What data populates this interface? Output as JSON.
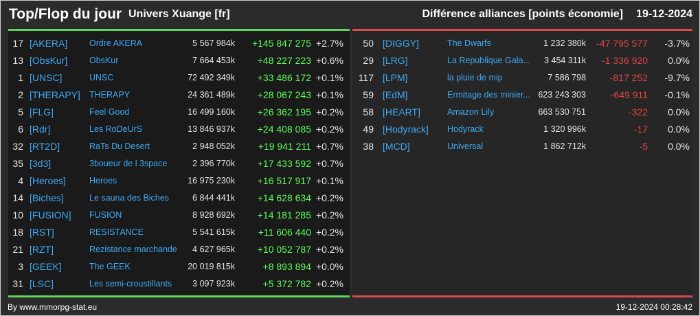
{
  "header": {
    "title": "Top/Flop du jour",
    "server": "Univers Xuange [fr]",
    "subtitle": "Différence alliances [points économie]",
    "date": "19-12-2024"
  },
  "colors": {
    "top_accent": "#5cd65c",
    "flop_accent": "#dd4a4a",
    "gain_text": "#5cff5c",
    "loss_text": "#e04444",
    "tag_text": "#3fa9f5"
  },
  "top": [
    {
      "rank": "17",
      "tag": "[AKERA]",
      "name": "Ordre AKERA",
      "total": "5 567 984k",
      "diff": "+145 847 275",
      "pct": "+2.7%"
    },
    {
      "rank": "13",
      "tag": "[ObsKur]",
      "name": "ObsKur",
      "total": "7 664 453k",
      "diff": "+48 227 223",
      "pct": "+0.6%"
    },
    {
      "rank": "1",
      "tag": "[UNSC]",
      "name": "UNSC",
      "total": "72 492 349k",
      "diff": "+33 486 172",
      "pct": "+0.1%"
    },
    {
      "rank": "2",
      "tag": "[THERAPY]",
      "name": "THERAPY",
      "total": "24 361 489k",
      "diff": "+28 067 243",
      "pct": "+0.1%"
    },
    {
      "rank": "5",
      "tag": "[FLG]",
      "name": "Feel Good",
      "total": "16 499 160k",
      "diff": "+26 362 195",
      "pct": "+0.2%"
    },
    {
      "rank": "6",
      "tag": "[Rdr]",
      "name": "Les RoDeUrS",
      "total": "13 846 937k",
      "diff": "+24 408 085",
      "pct": "+0.2%"
    },
    {
      "rank": "32",
      "tag": "[RT2D]",
      "name": "RaTs Du Desert",
      "total": "2 948 052k",
      "diff": "+19 941 211",
      "pct": "+0.7%"
    },
    {
      "rank": "35",
      "tag": "[3d3]",
      "name": "3boueur de l 3space",
      "total": "2 396 770k",
      "diff": "+17 433 592",
      "pct": "+0.7%"
    },
    {
      "rank": "4",
      "tag": "[Heroes]",
      "name": "Heroes",
      "total": "16 975 230k",
      "diff": "+16 517 917",
      "pct": "+0.1%"
    },
    {
      "rank": "14",
      "tag": "[Biches]",
      "name": "Le sauna des Biches",
      "total": "6 844 441k",
      "diff": "+14 628 634",
      "pct": "+0.2%"
    },
    {
      "rank": "10",
      "tag": "[FUSION]",
      "name": "FUSION",
      "total": "8 928 692k",
      "diff": "+14 181 285",
      "pct": "+0.2%"
    },
    {
      "rank": "18",
      "tag": "[RST]",
      "name": "RESISTANCE",
      "total": "5 541 615k",
      "diff": "+11 606 440",
      "pct": "+0.2%"
    },
    {
      "rank": "21",
      "tag": "[RZT]",
      "name": "Rezistance marchande",
      "total": "4 627 965k",
      "diff": "+10 052 787",
      "pct": "+0.2%"
    },
    {
      "rank": "3",
      "tag": "[GEEK]",
      "name": "The GEEK",
      "total": "20 019 815k",
      "diff": "+8 893 894",
      "pct": "+0.0%"
    },
    {
      "rank": "31",
      "tag": "[LSC]",
      "name": "Les semi-croustillants",
      "total": "3 097 923k",
      "diff": "+5 372 782",
      "pct": "+0.2%"
    }
  ],
  "flop": [
    {
      "rank": "50",
      "tag": "[DIGGY]",
      "name": "The Dwarfs",
      "total": "1 232 380k",
      "diff": "-47 795 577",
      "pct": "-3.7%"
    },
    {
      "rank": "29",
      "tag": "[LRG]",
      "name": "La Republique Gala...",
      "total": "3 454 311k",
      "diff": "-1 336 920",
      "pct": "0.0%"
    },
    {
      "rank": "117",
      "tag": "[LPM]",
      "name": "la pluie de mip",
      "total": "7 586 798",
      "diff": "-817 252",
      "pct": "-9.7%"
    },
    {
      "rank": "59",
      "tag": "[EdM]",
      "name": "Ermitage des minier...",
      "total": "623 243 303",
      "diff": "-649 911",
      "pct": "-0.1%"
    },
    {
      "rank": "58",
      "tag": "[HEART]",
      "name": "Amazon Lily",
      "total": "663 530 751",
      "diff": "-322",
      "pct": "0.0%"
    },
    {
      "rank": "49",
      "tag": "[Hodyrack]",
      "name": "Hodyrack",
      "total": "1 320 996k",
      "diff": "-17",
      "pct": "0.0%"
    },
    {
      "rank": "38",
      "tag": "[MCD]",
      "name": "Universal",
      "total": "1 862 712k",
      "diff": "-5",
      "pct": "0.0%"
    }
  ],
  "footer": {
    "credit": "By www.mmorpg-stat.eu",
    "timestamp": "19-12-2024 00:28:42"
  }
}
